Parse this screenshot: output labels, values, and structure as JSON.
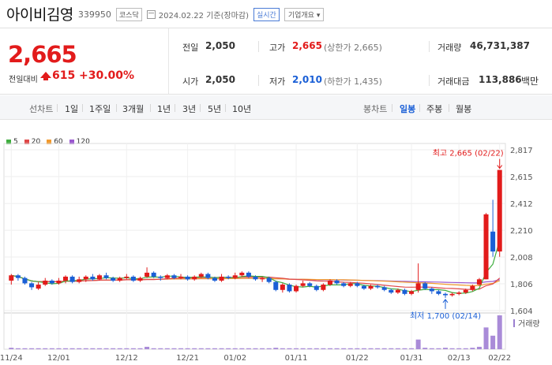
{
  "header": {
    "stock_name": "아이비김영",
    "stock_code": "339950",
    "market": "코스닥",
    "date_text": "2024.02.22 기준(장마감)",
    "realtime_label": "실시간",
    "company_info_label": "기업개요 ▾"
  },
  "price": {
    "current": "2,665",
    "prev_diff_label": "전일대비",
    "change": "615",
    "change_pct": "+30.00%",
    "prev_label": "전일",
    "prev_value": "2,050",
    "high_label": "고가",
    "high_value": "2,665",
    "upper_limit": "(상한가 2,665)",
    "volume_label": "거래량",
    "volume_value": "46,731,387",
    "open_label": "시가",
    "open_value": "2,050",
    "low_label": "저가",
    "low_value": "2,010",
    "lower_limit": "(하한가 1,435)",
    "amount_label": "거래대금",
    "amount_value": "113,886",
    "amount_unit": "백만"
  },
  "period_bar": {
    "line_chart_label": "선차트",
    "ranges": [
      "1일",
      "1주일",
      "3개월",
      "1년",
      "3년",
      "5년",
      "10년"
    ],
    "candle_label": "봉차트",
    "candle_types": [
      "일봉",
      "주봉",
      "월봉"
    ],
    "active_candle": "일봉"
  },
  "legend": [
    {
      "label": "5",
      "color": "#3fae3f"
    },
    {
      "label": "20",
      "color": "#e04848"
    },
    {
      "label": "60",
      "color": "#f29a2e"
    },
    {
      "label": "120",
      "color": "#9b59d0"
    }
  ],
  "colors": {
    "up": "#e21b1b",
    "down": "#1a5fd6"
  },
  "chart_data": {
    "type": "candlestick",
    "y_ticks": [
      "2,817",
      "2,615",
      "2,412",
      "2,210",
      "2,008",
      "1,806",
      "1,604"
    ],
    "ylim": [
      1604,
      2817
    ],
    "x_ticks": [
      "11/24",
      "12/01",
      "12/12",
      "12/21",
      "01/02",
      "01/11",
      "01/22",
      "01/31",
      "02/13",
      "02/22"
    ],
    "volume_label": "거래량",
    "high_annotation": "최고 2,665 (02/22)",
    "low_annotation": "최저 1,700 (02/14)",
    "candles": [
      [
        1830,
        1870,
        1880,
        1800
      ],
      [
        1870,
        1850,
        1880,
        1830
      ],
      [
        1850,
        1810,
        1860,
        1800
      ],
      [
        1810,
        1780,
        1820,
        1760
      ],
      [
        1770,
        1800,
        1820,
        1760
      ],
      [
        1800,
        1830,
        1850,
        1790
      ],
      [
        1830,
        1810,
        1840,
        1800
      ],
      [
        1810,
        1830,
        1850,
        1800
      ],
      [
        1830,
        1860,
        1870,
        1810
      ],
      [
        1860,
        1820,
        1870,
        1810
      ],
      [
        1820,
        1840,
        1860,
        1810
      ],
      [
        1840,
        1860,
        1870,
        1820
      ],
      [
        1860,
        1840,
        1880,
        1830
      ],
      [
        1840,
        1870,
        1880,
        1830
      ],
      [
        1870,
        1850,
        1890,
        1840
      ],
      [
        1850,
        1830,
        1860,
        1820
      ],
      [
        1830,
        1850,
        1860,
        1820
      ],
      [
        1850,
        1860,
        1880,
        1840
      ],
      [
        1860,
        1830,
        1870,
        1820
      ],
      [
        1830,
        1850,
        1860,
        1820
      ],
      [
        1860,
        1890,
        1930,
        1850
      ],
      [
        1890,
        1860,
        1900,
        1850
      ],
      [
        1860,
        1850,
        1870,
        1830
      ],
      [
        1850,
        1870,
        1880,
        1840
      ],
      [
        1870,
        1850,
        1880,
        1840
      ],
      [
        1850,
        1860,
        1880,
        1840
      ],
      [
        1860,
        1840,
        1870,
        1830
      ],
      [
        1840,
        1860,
        1870,
        1830
      ],
      [
        1860,
        1880,
        1890,
        1850
      ],
      [
        1880,
        1850,
        1890,
        1840
      ],
      [
        1850,
        1830,
        1860,
        1820
      ],
      [
        1830,
        1860,
        1880,
        1820
      ],
      [
        1860,
        1850,
        1870,
        1840
      ],
      [
        1850,
        1870,
        1890,
        1840
      ],
      [
        1870,
        1890,
        1900,
        1860
      ],
      [
        1890,
        1860,
        1900,
        1850
      ],
      [
        1860,
        1840,
        1870,
        1830
      ],
      [
        1840,
        1850,
        1860,
        1820
      ],
      [
        1850,
        1820,
        1860,
        1810
      ],
      [
        1820,
        1760,
        1830,
        1750
      ],
      [
        1760,
        1800,
        1810,
        1740
      ],
      [
        1800,
        1750,
        1810,
        1740
      ],
      [
        1750,
        1790,
        1800,
        1740
      ],
      [
        1790,
        1810,
        1830,
        1780
      ],
      [
        1810,
        1790,
        1820,
        1780
      ],
      [
        1790,
        1760,
        1800,
        1750
      ],
      [
        1760,
        1800,
        1810,
        1750
      ],
      [
        1800,
        1830,
        1840,
        1790
      ],
      [
        1830,
        1810,
        1840,
        1800
      ],
      [
        1810,
        1790,
        1820,
        1780
      ],
      [
        1790,
        1810,
        1820,
        1780
      ],
      [
        1810,
        1790,
        1820,
        1780
      ],
      [
        1790,
        1770,
        1800,
        1760
      ],
      [
        1770,
        1790,
        1800,
        1760
      ],
      [
        1790,
        1780,
        1800,
        1770
      ],
      [
        1780,
        1760,
        1790,
        1750
      ],
      [
        1760,
        1740,
        1770,
        1730
      ],
      [
        1740,
        1760,
        1770,
        1730
      ],
      [
        1760,
        1730,
        1770,
        1720
      ],
      [
        1730,
        1750,
        1760,
        1720
      ],
      [
        1760,
        1810,
        1960,
        1740
      ],
      [
        1810,
        1770,
        1820,
        1760
      ],
      [
        1770,
        1750,
        1780,
        1730
      ],
      [
        1750,
        1730,
        1760,
        1720
      ],
      [
        1730,
        1720,
        1740,
        1700
      ],
      [
        1720,
        1730,
        1740,
        1710
      ],
      [
        1730,
        1740,
        1750,
        1720
      ],
      [
        1740,
        1760,
        1770,
        1730
      ],
      [
        1760,
        1790,
        1800,
        1750
      ],
      [
        1800,
        1840,
        1850,
        1790
      ],
      [
        1840,
        2330,
        2340,
        1840
      ],
      [
        2200,
        2050,
        2440,
        2010
      ],
      [
        2050,
        2665,
        2665,
        2010
      ]
    ],
    "volumes": [
      3,
      2,
      2,
      2,
      2,
      2,
      2,
      2,
      2,
      2,
      2,
      2,
      2,
      2,
      2,
      2,
      2,
      2,
      2,
      2,
      5,
      2,
      2,
      2,
      2,
      2,
      2,
      2,
      2,
      2,
      2,
      2,
      2,
      2,
      2,
      2,
      2,
      2,
      2,
      3,
      2,
      2,
      2,
      2,
      2,
      2,
      2,
      2,
      2,
      2,
      2,
      2,
      2,
      2,
      2,
      2,
      2,
      2,
      2,
      2,
      20,
      3,
      2,
      2,
      3,
      2,
      2,
      2,
      3,
      5,
      45,
      28,
      70
    ]
  }
}
